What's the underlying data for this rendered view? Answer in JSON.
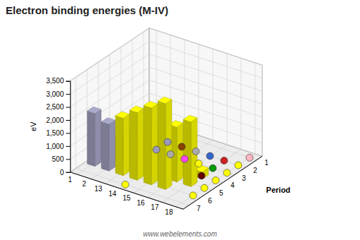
{
  "chart_data": {
    "type": "bar3d",
    "title": "Electron binding energies (M-IV)",
    "ylabel": "eV",
    "zlabel": "Period",
    "annotation": "www.webelements.com",
    "categories": [
      1,
      2,
      13,
      14,
      15,
      16,
      17,
      18
    ],
    "colors": [
      "#aaaacc",
      "#aaaacc",
      "#ffff00",
      "#ffff00",
      "#ffff00",
      "#ffff00",
      "#ffff00",
      "#ffff00"
    ],
    "series": [
      {
        "name": "1",
        "values": [
          0,
          0,
          0,
          0,
          0,
          0,
          0,
          0
        ]
      },
      {
        "name": "2",
        "values": [
          0,
          0,
          0,
          0,
          0,
          0,
          0,
          0
        ]
      },
      {
        "name": "3",
        "values": [
          0,
          0,
          0,
          0,
          0,
          0,
          0,
          0
        ]
      },
      {
        "name": "4",
        "values": [
          163,
          91,
          250,
          329,
          400,
          464,
          270,
          0
        ]
      },
      {
        "name": "5",
        "values": [
          1148,
          1012,
          1205,
          1562,
          1800,
          2107,
          2485,
          0
        ]
      },
      {
        "name": "6",
        "values": [
          2032,
          1793,
          2206,
          2600,
          2957,
          3302,
          0,
          0
        ]
      },
      {
        "name": "7",
        "values": [
          0,
          0,
          0,
          0,
          0,
          0,
          0,
          0
        ]
      }
    ],
    "ylim": [
      0,
      3500
    ],
    "yticks": [
      0,
      500,
      {
        "value": 1000,
        "label": "1,000"
      },
      {
        "value": 1500,
        "label": "1,500"
      },
      {
        "value": 2000,
        "label": "2,000"
      },
      {
        "value": 2500,
        "label": "2,500"
      },
      {
        "value": 3000,
        "label": "3,000"
      },
      {
        "value": 3500,
        "label": "3,500"
      }
    ],
    "grid": true,
    "dots": [
      {
        "group": 18,
        "period": 1,
        "color": "#ffb6c1"
      },
      {
        "group": 13,
        "period": 2,
        "color": "#9999bb"
      },
      {
        "group": 14,
        "period": 2,
        "color": "#884400"
      },
      {
        "group": 15,
        "period": 2,
        "color": "#aaaaaa"
      },
      {
        "group": 16,
        "period": 2,
        "color": "#3366cc"
      },
      {
        "group": 17,
        "period": 2,
        "color": "#cc2222"
      },
      {
        "group": 18,
        "period": 2,
        "color": "#ffff00"
      },
      {
        "group": 13,
        "period": 3,
        "color": "#9999bb"
      },
      {
        "group": 14,
        "period": 3,
        "color": "#aaaaaa"
      },
      {
        "group": 15,
        "period": 3,
        "color": "#ff44ff"
      },
      {
        "group": 16,
        "period": 3,
        "color": "#ffff00"
      },
      {
        "group": 17,
        "period": 3,
        "color": "#009900"
      },
      {
        "group": 18,
        "period": 3,
        "color": "#ffff00"
      },
      {
        "group": 17,
        "period": 4,
        "color": "#660000"
      },
      {
        "group": 18,
        "period": 4,
        "color": "#ffff00"
      },
      {
        "group": 18,
        "period": 5,
        "color": "#ffff00"
      },
      {
        "group": 18,
        "period": 6,
        "color": "#ffff00"
      },
      {
        "group": 14,
        "period": 7,
        "color": "#ffff00"
      }
    ]
  }
}
